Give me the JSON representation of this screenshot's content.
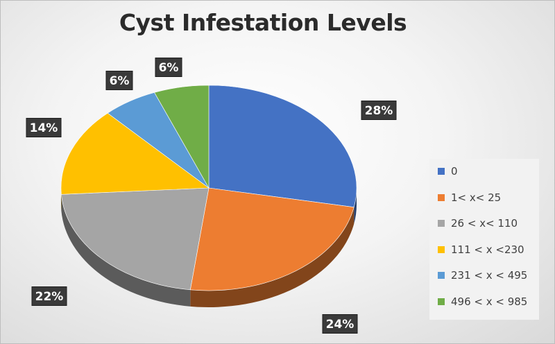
{
  "chart_data": {
    "type": "pie",
    "title": "Cyst Infestation Levels",
    "categories": [
      "0",
      "1< x< 25",
      "26 < x< 110",
      "111 < x <230",
      "231 < x < 495",
      "496 < x < 985"
    ],
    "values": [
      28,
      24,
      22,
      14,
      6,
      6
    ],
    "data_labels": [
      "28%",
      "24%",
      "22%",
      "14%",
      "6%",
      "6%"
    ],
    "colors": [
      "#4472C4",
      "#ED7D31",
      "#A5A5A5",
      "#FFC000",
      "#5B9BD5",
      "#70AD47"
    ],
    "style": "3d",
    "legend_position": "right"
  }
}
